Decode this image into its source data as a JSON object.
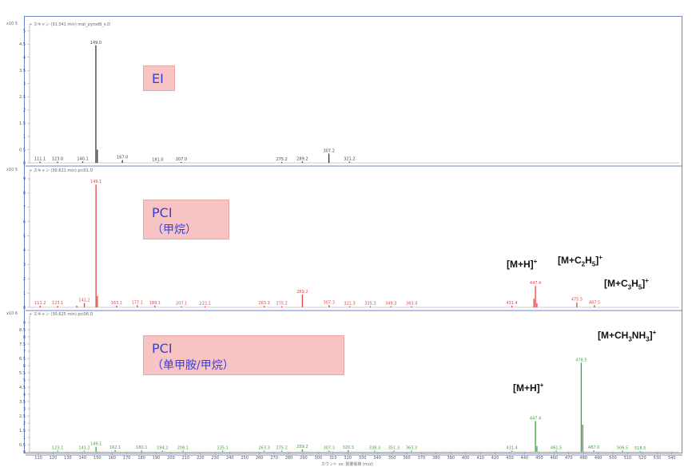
{
  "chart_data": [
    {
      "type": "bar",
      "panel_title": "+ スキャン (31.341 min) mat_pyrod8_x.D",
      "exponent_label": "x10 5",
      "box": {
        "line1": "EI",
        "line2": ""
      },
      "color": "#333333",
      "ylim": [
        0,
        5.2
      ],
      "yticks": [
        0,
        0.5,
        1,
        1.5,
        2,
        2.5,
        3,
        3.5,
        4,
        4.5,
        5
      ],
      "peaks": [
        {
          "x": 111.1,
          "y": 0.04,
          "label": "111.1"
        },
        {
          "x": 123.0,
          "y": 0.04,
          "label": "123.0"
        },
        {
          "x": 140.1,
          "y": 0.05,
          "label": "140.1"
        },
        {
          "x": 149.0,
          "y": 4.45,
          "label": "149.0"
        },
        {
          "x": 150.0,
          "y": 0.5,
          "label": ""
        },
        {
          "x": 167.0,
          "y": 0.1,
          "label": "167.0"
        },
        {
          "x": 191.0,
          "y": 0.02,
          "label": "191.0"
        },
        {
          "x": 207.0,
          "y": 0.03,
          "label": "207.0"
        },
        {
          "x": 275.2,
          "y": 0.03,
          "label": "275.2"
        },
        {
          "x": 289.2,
          "y": 0.05,
          "label": "289.2"
        },
        {
          "x": 307.2,
          "y": 0.35,
          "label": "307.2"
        },
        {
          "x": 321.2,
          "y": 0.04,
          "label": "321.2"
        }
      ]
    },
    {
      "type": "bar",
      "panel_title": "+ スキャン (30.621 min) pci01.D",
      "exponent_label": "x10 5",
      "box": {
        "line1": "PCI",
        "line2": "（甲烷）"
      },
      "color": "#e04646",
      "ylim": [
        0,
        9.5
      ],
      "yticks": [
        0,
        1,
        2,
        3,
        4,
        5,
        6,
        7,
        8,
        9
      ],
      "peaks": [
        {
          "x": 111.2,
          "y": 0.12,
          "label": "111.2"
        },
        {
          "x": 123.1,
          "y": 0.1,
          "label": "123.1"
        },
        {
          "x": 136.0,
          "y": 0.12,
          "label": ""
        },
        {
          "x": 141.2,
          "y": 0.3,
          "label": "141.2"
        },
        {
          "x": 149.1,
          "y": 8.6,
          "label": "149.1"
        },
        {
          "x": 150.0,
          "y": 0.8,
          "label": ""
        },
        {
          "x": 163.1,
          "y": 0.12,
          "label": "163.1"
        },
        {
          "x": 177.1,
          "y": 0.15,
          "label": "177.1"
        },
        {
          "x": 189.1,
          "y": 0.12,
          "label": "189.1"
        },
        {
          "x": 207.1,
          "y": 0.08,
          "label": "207.1"
        },
        {
          "x": 223.1,
          "y": 0.08,
          "label": "223.1"
        },
        {
          "x": 263.3,
          "y": 0.1,
          "label": "263.3"
        },
        {
          "x": 275.2,
          "y": 0.08,
          "label": "275.2"
        },
        {
          "x": 289.2,
          "y": 0.9,
          "label": "289.2"
        },
        {
          "x": 307.3,
          "y": 0.15,
          "label": "307.3"
        },
        {
          "x": 321.3,
          "y": 0.08,
          "label": "321.3"
        },
        {
          "x": 335.3,
          "y": 0.08,
          "label": "335.3"
        },
        {
          "x": 349.3,
          "y": 0.08,
          "label": "349.3"
        },
        {
          "x": 363.4,
          "y": 0.08,
          "label": "363.4"
        },
        {
          "x": 431.4,
          "y": 0.12,
          "label": "431.4"
        },
        {
          "x": 446.4,
          "y": 0.6,
          "label": ""
        },
        {
          "x": 447.4,
          "y": 1.5,
          "label": "447.4"
        },
        {
          "x": 448.4,
          "y": 0.3,
          "label": ""
        },
        {
          "x": 475.5,
          "y": 0.35,
          "label": "475.5"
        },
        {
          "x": 487.5,
          "y": 0.15,
          "label": "487.5"
        }
      ],
      "annotations": [
        {
          "id": "mh",
          "text": "[M+H]+"
        },
        {
          "id": "mc2h5",
          "text": "[M+C2H5]+"
        },
        {
          "id": "mc3h5",
          "text": "[M+C3H5]+"
        }
      ]
    },
    {
      "type": "bar",
      "panel_title": "+ スキャン (30.625 min) pci06.D",
      "exponent_label": "x10 6",
      "box": {
        "line1": "PCI",
        "line2": "（单甲胺/甲烷）"
      },
      "color": "#3fa03f",
      "ylim": [
        0,
        9.5
      ],
      "yticks": [
        0,
        0.5,
        1,
        1.5,
        2,
        2.5,
        3,
        3.5,
        4,
        4.5,
        5,
        5.5,
        6,
        6.5,
        7,
        7.5,
        8,
        8.5,
        9
      ],
      "peaks": [
        {
          "x": 123.1,
          "y": 0.08,
          "label": "123.1"
        },
        {
          "x": 141.2,
          "y": 0.08,
          "label": "141.2"
        },
        {
          "x": 149.1,
          "y": 0.35,
          "label": "149.1"
        },
        {
          "x": 162.1,
          "y": 0.12,
          "label": "162.1"
        },
        {
          "x": 180.1,
          "y": 0.1,
          "label": "180.1"
        },
        {
          "x": 194.2,
          "y": 0.08,
          "label": "194.2"
        },
        {
          "x": 208.1,
          "y": 0.08,
          "label": "208.1"
        },
        {
          "x": 235.1,
          "y": 0.08,
          "label": "235.1"
        },
        {
          "x": 263.3,
          "y": 0.08,
          "label": "263.3"
        },
        {
          "x": 275.2,
          "y": 0.08,
          "label": "275.2"
        },
        {
          "x": 289.2,
          "y": 0.18,
          "label": "289.2"
        },
        {
          "x": 307.3,
          "y": 0.08,
          "label": "307.3"
        },
        {
          "x": 320.3,
          "y": 0.12,
          "label": "320.3"
        },
        {
          "x": 338.3,
          "y": 0.08,
          "label": "338.3"
        },
        {
          "x": 351.3,
          "y": 0.08,
          "label": "351.3"
        },
        {
          "x": 363.3,
          "y": 0.08,
          "label": "363.3"
        },
        {
          "x": 431.4,
          "y": 0.08,
          "label": "431.4"
        },
        {
          "x": 447.4,
          "y": 2.15,
          "label": "447.4"
        },
        {
          "x": 448.4,
          "y": 0.4,
          "label": ""
        },
        {
          "x": 461.5,
          "y": 0.08,
          "label": "461.5"
        },
        {
          "x": 478.5,
          "y": 6.2,
          "label": "478.5"
        },
        {
          "x": 479.5,
          "y": 1.9,
          "label": ""
        },
        {
          "x": 487.0,
          "y": 0.1,
          "label": "487.0"
        },
        {
          "x": 506.5,
          "y": 0.08,
          "label": "506.5"
        },
        {
          "x": 518.5,
          "y": 0.06,
          "label": "518.5"
        }
      ],
      "annotations": [
        {
          "id": "mh",
          "text": "[M+H]+"
        },
        {
          "id": "mch3nh3",
          "text": "[M+CH3NH3]+"
        }
      ]
    }
  ],
  "x_axis": {
    "xlim": [
      104,
      545
    ],
    "ticks": [
      110,
      120,
      130,
      140,
      150,
      160,
      170,
      180,
      190,
      200,
      210,
      220,
      230,
      240,
      250,
      260,
      270,
      280,
      290,
      300,
      310,
      320,
      330,
      340,
      350,
      360,
      370,
      380,
      390,
      400,
      410,
      420,
      430,
      440,
      450,
      460,
      470,
      480,
      490,
      500,
      510,
      520,
      530,
      540
    ],
    "xlabel": "カウント vs. 質量電荷 (m/z)"
  }
}
